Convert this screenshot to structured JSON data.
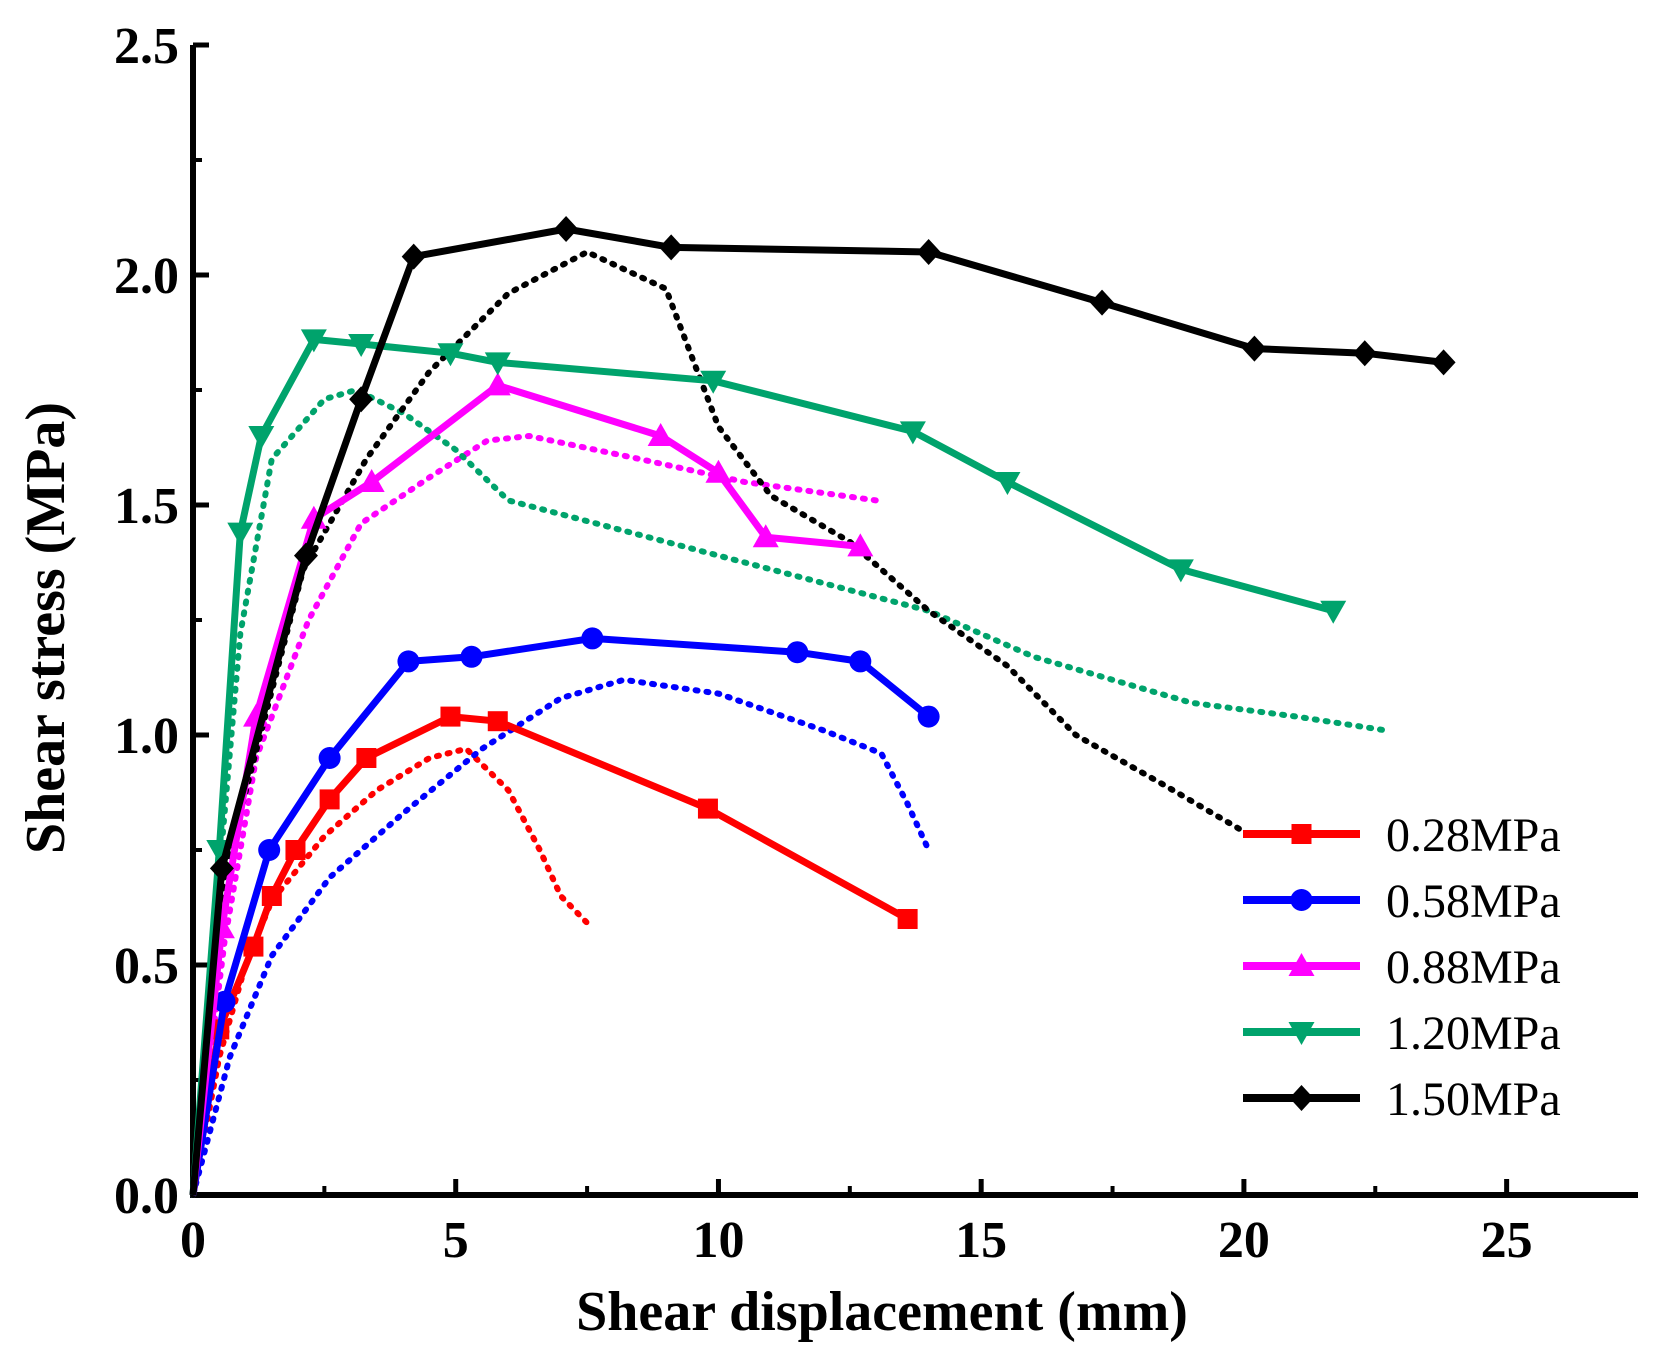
{
  "chart_data": {
    "type": "line",
    "title": "",
    "xlabel": "Shear displacement (mm)",
    "ylabel": "Shear stress (MPa)",
    "xlim": [
      0,
      27.5
    ],
    "ylim": [
      0,
      2.5
    ],
    "x_ticks": [
      0,
      5,
      10,
      15,
      20,
      25
    ],
    "x_tick_labels": [
      "0",
      "5",
      "10",
      "15",
      "20",
      "25"
    ],
    "y_ticks": [
      0.0,
      0.5,
      1.0,
      1.5,
      2.0,
      2.5
    ],
    "y_tick_labels": [
      "0.0",
      "0.5",
      "1.0",
      "1.5",
      "2.0",
      "2.5"
    ],
    "grid": false,
    "legend_position": "bottom-right",
    "series": [
      {
        "name": "0.28MPa",
        "color": "#ff0000",
        "marker": "square",
        "points": [
          [
            0,
            0
          ],
          [
            0.5,
            0.36
          ],
          [
            1.15,
            0.54
          ],
          [
            1.5,
            0.65
          ],
          [
            1.95,
            0.75
          ],
          [
            2.6,
            0.86
          ],
          [
            3.3,
            0.95
          ],
          [
            4.9,
            1.04
          ],
          [
            5.8,
            1.03
          ],
          [
            9.8,
            0.84
          ],
          [
            13.6,
            0.6
          ]
        ],
        "dotted": [
          [
            0,
            0
          ],
          [
            0.5,
            0.3
          ],
          [
            1.0,
            0.5
          ],
          [
            1.5,
            0.64
          ],
          [
            2.5,
            0.78
          ],
          [
            3.5,
            0.88
          ],
          [
            4.5,
            0.95
          ],
          [
            5.2,
            0.97
          ],
          [
            6.0,
            0.88
          ],
          [
            6.6,
            0.75
          ],
          [
            7.0,
            0.65
          ],
          [
            7.6,
            0.58
          ]
        ]
      },
      {
        "name": "0.58MPa",
        "color": "#0000ff",
        "marker": "circle",
        "points": [
          [
            0,
            0
          ],
          [
            0.6,
            0.42
          ],
          [
            1.45,
            0.75
          ],
          [
            2.6,
            0.95
          ],
          [
            4.1,
            1.16
          ],
          [
            5.3,
            1.17
          ],
          [
            7.6,
            1.21
          ],
          [
            11.5,
            1.18
          ],
          [
            12.7,
            1.16
          ],
          [
            14.0,
            1.04
          ]
        ],
        "dotted": [
          [
            0,
            0
          ],
          [
            0.7,
            0.3
          ],
          [
            1.5,
            0.52
          ],
          [
            2.6,
            0.69
          ],
          [
            4.0,
            0.83
          ],
          [
            5.5,
            0.97
          ],
          [
            7.0,
            1.08
          ],
          [
            8.2,
            1.12
          ],
          [
            10.0,
            1.09
          ],
          [
            12.0,
            1.01
          ],
          [
            13.1,
            0.96
          ],
          [
            13.6,
            0.85
          ],
          [
            14.0,
            0.75
          ]
        ]
      },
      {
        "name": "0.88MPa",
        "color": "#ff00ff",
        "marker": "triangle-up",
        "points": [
          [
            0,
            0
          ],
          [
            0.55,
            0.58
          ],
          [
            1.2,
            1.04
          ],
          [
            2.3,
            1.47
          ],
          [
            3.4,
            1.55
          ],
          [
            5.8,
            1.76
          ],
          [
            8.9,
            1.65
          ],
          [
            10.0,
            1.57
          ],
          [
            10.9,
            1.43
          ],
          [
            12.7,
            1.41
          ]
        ],
        "dotted": [
          [
            0,
            0
          ],
          [
            0.6,
            0.55
          ],
          [
            1.2,
            0.95
          ],
          [
            2.2,
            1.25
          ],
          [
            3.2,
            1.46
          ],
          [
            4.5,
            1.56
          ],
          [
            5.6,
            1.64
          ],
          [
            6.4,
            1.65
          ],
          [
            8.5,
            1.6
          ],
          [
            10.5,
            1.55
          ],
          [
            13.0,
            1.51
          ]
        ]
      },
      {
        "name": "1.20MPa",
        "color": "#00a36c",
        "marker": "triangle-down",
        "points": [
          [
            0,
            0
          ],
          [
            0.5,
            0.75
          ],
          [
            0.9,
            1.44
          ],
          [
            1.3,
            1.65
          ],
          [
            2.3,
            1.86
          ],
          [
            3.2,
            1.85
          ],
          [
            4.9,
            1.83
          ],
          [
            5.8,
            1.81
          ],
          [
            9.9,
            1.77
          ],
          [
            13.7,
            1.66
          ],
          [
            15.5,
            1.55
          ],
          [
            18.8,
            1.36
          ],
          [
            21.7,
            1.27
          ]
        ],
        "dotted": [
          [
            0,
            0
          ],
          [
            0.5,
            0.7
          ],
          [
            0.9,
            1.22
          ],
          [
            1.5,
            1.6
          ],
          [
            2.5,
            1.73
          ],
          [
            3.1,
            1.75
          ],
          [
            4.0,
            1.7
          ],
          [
            5.0,
            1.62
          ],
          [
            6.0,
            1.51
          ],
          [
            8.0,
            1.45
          ],
          [
            11.0,
            1.36
          ],
          [
            14.0,
            1.27
          ],
          [
            16.0,
            1.17
          ],
          [
            19.0,
            1.07
          ],
          [
            21.0,
            1.04
          ],
          [
            22.7,
            1.01
          ]
        ]
      },
      {
        "name": "1.50MPa",
        "color": "#000000",
        "marker": "diamond",
        "points": [
          [
            0,
            0
          ],
          [
            0.55,
            0.71
          ],
          [
            2.15,
            1.39
          ],
          [
            3.2,
            1.73
          ],
          [
            4.2,
            2.04
          ],
          [
            7.1,
            2.1
          ],
          [
            9.1,
            2.06
          ],
          [
            14.0,
            2.05
          ],
          [
            17.3,
            1.94
          ],
          [
            20.2,
            1.84
          ],
          [
            22.3,
            1.83
          ],
          [
            23.8,
            1.81
          ]
        ],
        "dotted": [
          [
            0,
            0
          ],
          [
            0.6,
            0.7
          ],
          [
            2.1,
            1.36
          ],
          [
            3.3,
            1.6
          ],
          [
            4.5,
            1.79
          ],
          [
            6.0,
            1.96
          ],
          [
            7.5,
            2.05
          ],
          [
            9.0,
            1.97
          ],
          [
            10.0,
            1.67
          ],
          [
            11.0,
            1.52
          ],
          [
            12.5,
            1.42
          ],
          [
            14.0,
            1.27
          ],
          [
            15.5,
            1.15
          ],
          [
            16.8,
            1.0
          ],
          [
            18.5,
            0.89
          ],
          [
            20.0,
            0.79
          ]
        ]
      }
    ]
  }
}
